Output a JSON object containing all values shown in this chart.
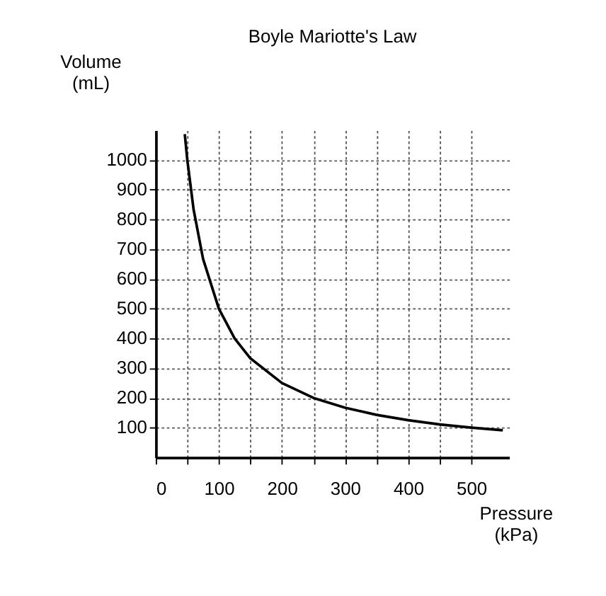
{
  "chart_data": {
    "type": "line",
    "title": "Boyle Mariotte's Law",
    "xlabel": "Pressure (kPa)",
    "ylabel": "Volume (mL)",
    "x": [
      46,
      50,
      60,
      75,
      100,
      125,
      150,
      200,
      250,
      300,
      350,
      400,
      450,
      500,
      550
    ],
    "series": [
      {
        "color": "#000000",
        "values": [
          1087,
          1000,
          833,
          667,
          500,
          400,
          333,
          250,
          200,
          167,
          143,
          125,
          111,
          100,
          91
        ]
      }
    ],
    "xlim": [
      0,
      560
    ],
    "ylim": [
      0,
      1100
    ],
    "xticks": [
      0,
      {
        "value": 50,
        "label": null
      },
      100,
      {
        "value": 150,
        "label": null
      },
      200,
      {
        "value": 250,
        "label": null
      },
      300,
      {
        "value": 350,
        "label": null
      },
      400,
      {
        "value": 450,
        "label": null
      },
      500
    ],
    "yticks": [
      100,
      200,
      300,
      400,
      500,
      600,
      700,
      800,
      900,
      1000
    ],
    "grid": true,
    "marker": "none",
    "line_style": "solid"
  }
}
